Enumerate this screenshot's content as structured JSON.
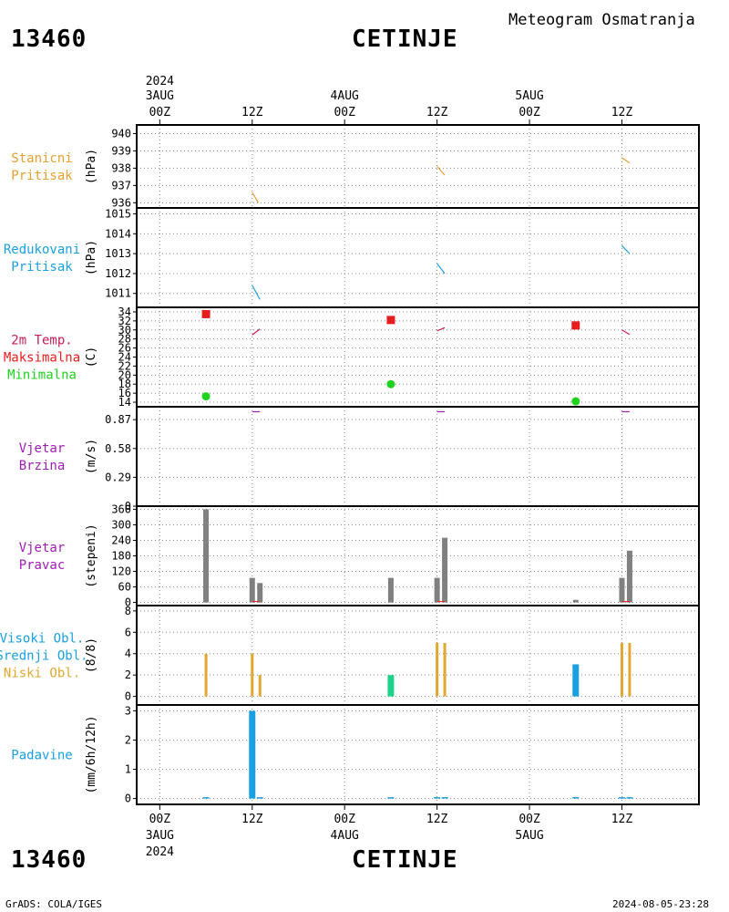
{
  "header": {
    "station_id": "13460",
    "station_name": "CETINJE",
    "title": "Meteogram Osmatranja"
  },
  "footer": {
    "station_id": "13460",
    "station_name": "CETINJE",
    "credit": "GrADS: COLA/IGES",
    "timestamp": "2024-08-05-23:28"
  },
  "time_axis": {
    "year": "2024",
    "ticks": [
      {
        "hour": 0,
        "label": "00Z",
        "date": "3AUG"
      },
      {
        "hour": 12,
        "label": "12Z",
        "date": ""
      },
      {
        "hour": 24,
        "label": "00Z",
        "date": "4AUG"
      },
      {
        "hour": 36,
        "label": "12Z",
        "date": ""
      },
      {
        "hour": 48,
        "label": "00Z",
        "date": "5AUG"
      },
      {
        "hour": 60,
        "label": "12Z",
        "date": ""
      }
    ],
    "range_hours": [
      -3,
      70
    ]
  },
  "colors": {
    "pressure_station": "#e8a030",
    "pressure_reduced": "#1aa0e0",
    "temperature": "#c81e5a",
    "temp_max": "#e61e1e",
    "temp_min": "#1ed21e",
    "wind": "#a01eb4",
    "bar_grey": "#808080",
    "cloud_high": "#1aa0e0",
    "cloud_mid": "#1ed28c",
    "cloud_low": "#e0a830",
    "precip": "#1aa0e0",
    "precip_label": "#1aa0e0"
  },
  "chart_data": [
    {
      "type": "line",
      "id": "station_pressure",
      "labels": [
        "Stanicni",
        "Pritisak"
      ],
      "label_color": "#e8a030",
      "ylabel": "(hPa)",
      "yticks": [
        936,
        937,
        938,
        939,
        940
      ],
      "ylim": [
        935.7,
        940.5
      ],
      "series": [
        {
          "color": "#e8a030",
          "points": [
            [
              12,
              936.6
            ],
            [
              12.8,
              936.0
            ]
          ]
        },
        {
          "color": "#e8a030",
          "points": [
            [
              36,
              938.1
            ],
            [
              37,
              937.6
            ]
          ]
        },
        {
          "color": "#e8a030",
          "points": [
            [
              60,
              938.6
            ],
            [
              61,
              938.3
            ]
          ]
        }
      ]
    },
    {
      "type": "line",
      "id": "reduced_pressure",
      "labels": [
        "Redukovani",
        "Pritisak"
      ],
      "label_color": "#1aa0e0",
      "ylabel": "(hPa)",
      "yticks": [
        1011,
        1012,
        1013,
        1014,
        1015
      ],
      "ylim": [
        1010.3,
        1015.3
      ],
      "series": [
        {
          "color": "#1aa0e0",
          "points": [
            [
              12,
              1011.4
            ],
            [
              13,
              1010.7
            ]
          ]
        },
        {
          "color": "#1aa0e0",
          "points": [
            [
              36,
              1012.5
            ],
            [
              37,
              1012.0
            ]
          ]
        },
        {
          "color": "#1aa0e0",
          "points": [
            [
              60,
              1013.4
            ],
            [
              61,
              1013.0
            ]
          ]
        }
      ]
    },
    {
      "type": "scatter",
      "id": "temperature",
      "labels": [
        "2m Temp.",
        "Maksimalna",
        "Minimalna"
      ],
      "label_colors": [
        "#c81e5a",
        "#e61e1e",
        "#1ed21e"
      ],
      "ylabel": "(C)",
      "yticks": [
        14,
        16,
        18,
        20,
        22,
        24,
        26,
        28,
        30,
        32,
        34
      ],
      "ylim": [
        13,
        35
      ],
      "series": [
        {
          "color": "#c81e5a",
          "kind": "line",
          "points": [
            [
              12,
              28.9
            ],
            [
              13,
              30.2
            ]
          ]
        },
        {
          "color": "#c81e5a",
          "kind": "line",
          "points": [
            [
              36,
              29.8
            ],
            [
              37,
              30.5
            ]
          ]
        },
        {
          "color": "#c81e5a",
          "kind": "line",
          "points": [
            [
              60,
              30.0
            ],
            [
              61,
              29.0
            ]
          ]
        }
      ],
      "max": [
        [
          6,
          33.5
        ],
        [
          30,
          32.2
        ],
        [
          54,
          31.0
        ]
      ],
      "min": [
        [
          6,
          15.3
        ],
        [
          30,
          18.0
        ],
        [
          54,
          14.2
        ]
      ]
    },
    {
      "type": "line",
      "id": "wind_speed",
      "labels": [
        "Vjetar",
        "Brzina"
      ],
      "label_color": "#a01eb4",
      "ylabel": "(m/s)",
      "yticks": [
        0,
        0.29,
        0.58,
        0.87
      ],
      "ylim": [
        0,
        1.0
      ],
      "series": [
        {
          "color": "#a01eb4",
          "points": [
            [
              12,
              0.95
            ],
            [
              13,
              0.95
            ]
          ]
        },
        {
          "color": "#a01eb4",
          "points": [
            [
              36,
              0.95
            ],
            [
              37,
              0.95
            ]
          ]
        },
        {
          "color": "#a01eb4",
          "points": [
            [
              60,
              0.95
            ],
            [
              61,
              0.95
            ]
          ]
        }
      ]
    },
    {
      "type": "bar",
      "id": "wind_direction",
      "labels": [
        "Vjetar",
        "Pravac"
      ],
      "label_color": "#a01eb4",
      "ylabel": "(stepeni)",
      "yticks": [
        0,
        60,
        120,
        180,
        240,
        300,
        360
      ],
      "ylim": [
        -12,
        372
      ],
      "bars": [
        {
          "x": 6,
          "value": 360
        },
        {
          "x": 12,
          "value": 95
        },
        {
          "x": 13,
          "value": 75
        },
        {
          "x": 30,
          "value": 95
        },
        {
          "x": 36,
          "value": 95
        },
        {
          "x": 37,
          "value": 250
        },
        {
          "x": 54,
          "value": 10
        },
        {
          "x": 60,
          "value": 95
        },
        {
          "x": 61,
          "value": 200
        }
      ]
    },
    {
      "type": "bar",
      "id": "clouds",
      "labels": [
        "Visoki Obl.",
        "Srednji Obl.",
        "Niski Obl."
      ],
      "label_colors": [
        "#1aa0e0",
        "#1aa0e0",
        "#e0a830"
      ],
      "ylabel": "(8/8)",
      "yticks": [
        0,
        2,
        4,
        6,
        8
      ],
      "ylim": [
        -0.8,
        8.5
      ],
      "bars": [
        {
          "x": 6,
          "value": 4,
          "layer": "low"
        },
        {
          "x": 12,
          "value": 4,
          "layer": "low"
        },
        {
          "x": 13,
          "value": 2,
          "layer": "low"
        },
        {
          "x": 30,
          "value": 2,
          "layer": "mid"
        },
        {
          "x": 36,
          "value": 5,
          "layer": "low"
        },
        {
          "x": 37,
          "value": 5,
          "layer": "low"
        },
        {
          "x": 54,
          "value": 3,
          "layer": "high"
        },
        {
          "x": 60,
          "value": 5,
          "layer": "low"
        },
        {
          "x": 61,
          "value": 5,
          "layer": "low"
        }
      ]
    },
    {
      "type": "bar",
      "id": "precipitation",
      "labels": [
        "Padavine"
      ],
      "label_color": "#1aa0e0",
      "ylabel": "(mm/6h/12h)",
      "yticks": [
        0,
        1,
        2,
        3
      ],
      "ylim": [
        -0.2,
        3.2
      ],
      "bars": [
        {
          "x": 6,
          "value": 0.02
        },
        {
          "x": 12,
          "value": 3.0
        },
        {
          "x": 13,
          "value": 0.02
        },
        {
          "x": 30,
          "value": 0.02
        },
        {
          "x": 36,
          "value": 0.02
        },
        {
          "x": 37,
          "value": 0.02
        },
        {
          "x": 54,
          "value": 0.02
        },
        {
          "x": 60,
          "value": 0.02
        },
        {
          "x": 61,
          "value": 0.02
        }
      ]
    }
  ]
}
